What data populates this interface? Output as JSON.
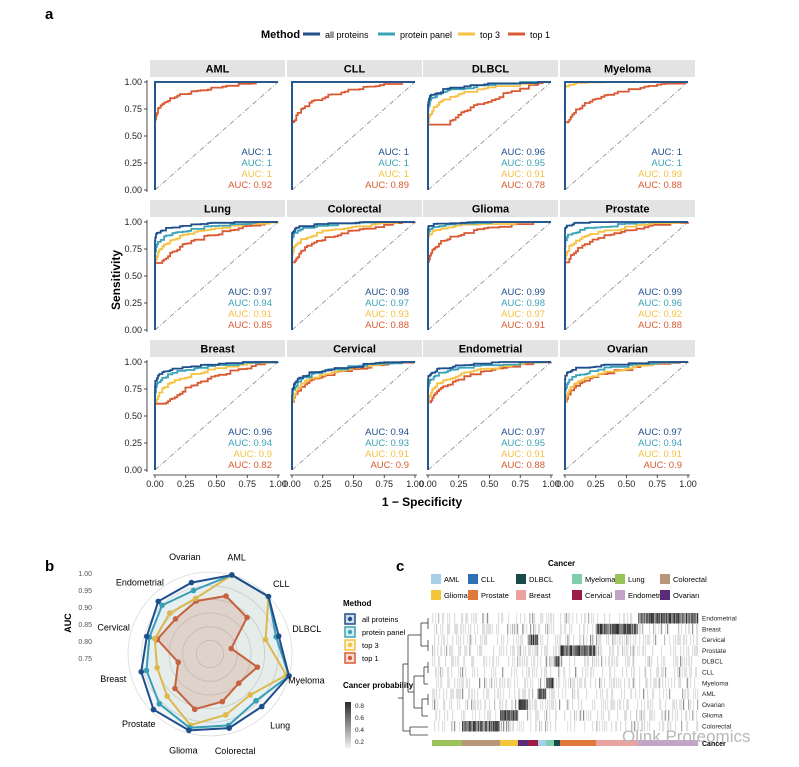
{
  "panel_labels": {
    "a": "a",
    "b": "b",
    "c": "c"
  },
  "legend": {
    "title": "Method",
    "items": [
      {
        "name": "all proteins",
        "color": "#1f4e8c"
      },
      {
        "name": "protein panel",
        "color": "#3aa3b5"
      },
      {
        "name": "top 3",
        "color": "#f5c242"
      },
      {
        "name": "top 1",
        "color": "#d95a32"
      }
    ]
  },
  "chart_data": [
    {
      "type": "line",
      "title": "ROC curves by cancer type",
      "xlabel": "1 − Specificity",
      "ylabel": "Sensitivity",
      "xlim": [
        0,
        1
      ],
      "ylim": [
        0,
        1
      ],
      "xticks": [
        "0.00",
        "0.25",
        "0.50",
        "0.75",
        "1.00"
      ],
      "yticks": [
        "0.00",
        "0.25",
        "0.50",
        "0.75",
        "1.00"
      ],
      "panels": [
        {
          "name": "AML",
          "auc": [
            "AUC: 1",
            "AUC: 1",
            "AUC: 1",
            "AUC: 0.92"
          ]
        },
        {
          "name": "CLL",
          "auc": [
            "AUC: 1",
            "AUC: 1",
            "AUC: 1",
            "AUC: 0.89"
          ]
        },
        {
          "name": "DLBCL",
          "auc": [
            "AUC: 0.96",
            "AUC: 0.95",
            "AUC: 0.91",
            "AUC: 0.78"
          ]
        },
        {
          "name": "Myeloma",
          "auc": [
            "AUC: 1",
            "AUC: 1",
            "AUC: 0.99",
            "AUC: 0.88"
          ]
        },
        {
          "name": "Lung",
          "auc": [
            "AUC: 0.97",
            "AUC: 0.94",
            "AUC: 0.91",
            "AUC: 0.85"
          ]
        },
        {
          "name": "Colorectal",
          "auc": [
            "AUC: 0.98",
            "AUC: 0.97",
            "AUC: 0.93",
            "AUC: 0.88"
          ]
        },
        {
          "name": "Glioma",
          "auc": [
            "AUC: 0.99",
            "AUC: 0.98",
            "AUC: 0.97",
            "AUC: 0.91"
          ]
        },
        {
          "name": "Prostate",
          "auc": [
            "AUC: 0.99",
            "AUC: 0.96",
            "AUC: 0.92",
            "AUC: 0.88"
          ]
        },
        {
          "name": "Breast",
          "auc": [
            "AUC: 0.96",
            "AUC: 0.94",
            "AUC: 0.9",
            "AUC: 0.82"
          ]
        },
        {
          "name": "Cervical",
          "auc": [
            "AUC: 0.94",
            "AUC: 0.93",
            "AUC: 0.91",
            "AUC: 0.9"
          ]
        },
        {
          "name": "Endometrial",
          "auc": [
            "AUC: 0.97",
            "AUC: 0.95",
            "AUC: 0.91",
            "AUC: 0.88"
          ]
        },
        {
          "name": "Ovarian",
          "auc": [
            "AUC: 0.97",
            "AUC: 0.94",
            "AUC: 0.91",
            "AUC: 0.9"
          ]
        }
      ]
    },
    {
      "type": "radar",
      "ylabel": "AUC",
      "rticks": [
        "0.75",
        "0.80",
        "0.85",
        "0.90",
        "0.95",
        "1.00"
      ],
      "rlim": [
        0.75,
        1.0
      ],
      "categories": [
        "AML",
        "CLL",
        "DLBCL",
        "Myeloma",
        "Lung",
        "Colorectal",
        "Glioma",
        "Prostate",
        "Breast",
        "Cervical",
        "Endometrial",
        "Ovarian"
      ],
      "series": [
        {
          "name": "all proteins",
          "values": [
            1,
            1,
            0.96,
            1,
            0.97,
            0.98,
            0.99,
            0.99,
            0.96,
            0.94,
            0.97,
            0.97
          ]
        },
        {
          "name": "protein panel",
          "values": [
            1,
            1,
            0.95,
            1,
            0.94,
            0.97,
            0.98,
            0.96,
            0.94,
            0.93,
            0.95,
            0.94
          ]
        },
        {
          "name": "top 3",
          "values": [
            1,
            1,
            0.91,
            0.99,
            0.91,
            0.93,
            0.97,
            0.92,
            0.9,
            0.91,
            0.91,
            0.91
          ]
        },
        {
          "name": "top 1",
          "values": [
            0.92,
            0.89,
            0.78,
            0.88,
            0.85,
            0.88,
            0.91,
            0.88,
            0.82,
            0.9,
            0.88,
            0.9
          ]
        }
      ]
    },
    {
      "type": "heatmap",
      "legend_title": "Cancer",
      "classes": [
        {
          "name": "AML",
          "color": "#a9cfe8"
        },
        {
          "name": "CLL",
          "color": "#2e6fb5"
        },
        {
          "name": "DLBCL",
          "color": "#1a4a4a"
        },
        {
          "name": "Myeloma",
          "color": "#7fcfae"
        },
        {
          "name": "Lung",
          "color": "#9cc25a"
        },
        {
          "name": "Colorectal",
          "color": "#b8967a"
        },
        {
          "name": "Glioma",
          "color": "#f2c53a"
        },
        {
          "name": "Prostate",
          "color": "#e07a3c"
        },
        {
          "name": "Breast",
          "color": "#e9a3a0"
        },
        {
          "name": "Cervical",
          "color": "#9b1c45"
        },
        {
          "name": "Endometrial",
          "color": "#c3a4c9"
        },
        {
          "name": "Ovarian",
          "color": "#5b2a7a"
        }
      ],
      "rows": [
        "Endometrial",
        "Breast",
        "Cervical",
        "Prostate",
        "DLBCL",
        "CLL",
        "Myeloma",
        "AML",
        "Ovarian",
        "Glioma",
        "Colorectal",
        "Lung"
      ],
      "bottom_label": "Cancer",
      "prob_title": "Cancer probability",
      "prob_ticks": [
        "0.2",
        "0.4",
        "0.6",
        "0.8"
      ]
    }
  ],
  "watermark": "Olink Proteomics"
}
